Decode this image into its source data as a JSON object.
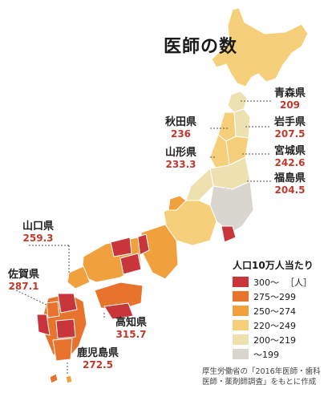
{
  "title": "医師の数",
  "legend": {
    "title": "人口10万人当たり",
    "unit": "［人］",
    "items": [
      {
        "label": "300～",
        "color": "#c8353b"
      },
      {
        "label": "275～299",
        "color": "#e8732c"
      },
      {
        "label": "250～274",
        "color": "#f0a13e"
      },
      {
        "label": "220～249",
        "color": "#f5cf7a"
      },
      {
        "label": "200～219",
        "color": "#ede1b0"
      },
      {
        "label": "～199",
        "color": "#d9d6d0"
      }
    ]
  },
  "prefectures": {
    "aomori": {
      "name": "青森県",
      "value": "209"
    },
    "iwate": {
      "name": "岩手県",
      "value": "207.5"
    },
    "akita": {
      "name": "秋田県",
      "value": "236"
    },
    "miyagi": {
      "name": "宮城県",
      "value": "242.6"
    },
    "yamagata": {
      "name": "山形県",
      "value": "233.3"
    },
    "fukushima": {
      "name": "福島県",
      "value": "204.5"
    },
    "yamaguchi": {
      "name": "山口県",
      "value": "259.3"
    },
    "saga": {
      "name": "佐賀県",
      "value": "287.1"
    },
    "kochi": {
      "name": "高知県",
      "value": "315.7"
    },
    "kagoshima": {
      "name": "鹿児島県",
      "value": "272.5"
    }
  },
  "source": {
    "line1": "厚生労働省の「2016年医師・歯科",
    "line2": "医師・薬剤師調査」をもとに作成"
  }
}
